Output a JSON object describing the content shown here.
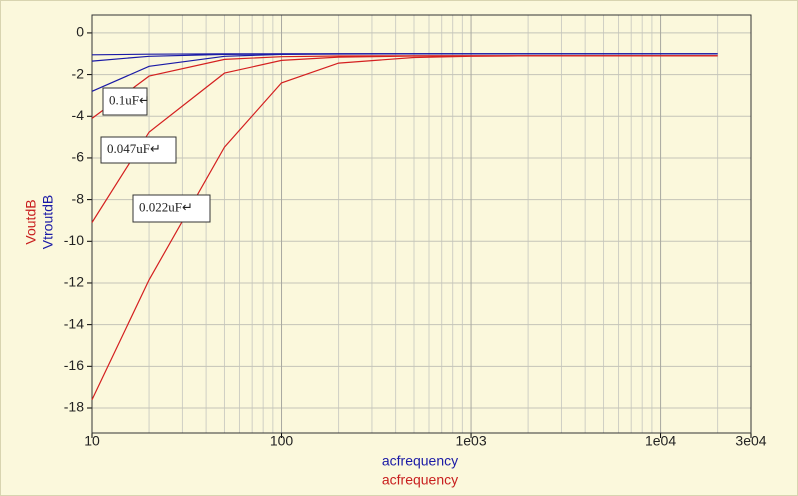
{
  "chart_data": {
    "type": "line",
    "log_x": true,
    "grid": true,
    "minor_grid": true,
    "x_labels": [
      {
        "text": "acfrequency",
        "color": "#1a1aa6"
      },
      {
        "text": "acfrequency",
        "color": "#c81e1e"
      }
    ],
    "y_labels": [
      {
        "text": "VoutdB",
        "color": "#c81e1e"
      },
      {
        "text": "VtroutdB",
        "color": "#1a1aa6"
      }
    ],
    "x": [
      10,
      20,
      50,
      100,
      200,
      500,
      1000,
      2000,
      5000,
      10000,
      20000
    ],
    "series": [
      {
        "color": "#d42020",
        "values": [
          -4.1,
          -2.07,
          -1.27,
          -1.14,
          -1.11,
          -1.1,
          -1.1,
          -1.1,
          -1.1,
          -1.1,
          -1.1
        ]
      },
      {
        "color": "#d42020",
        "values": [
          -9.1,
          -4.76,
          -1.93,
          -1.32,
          -1.16,
          -1.11,
          -1.1,
          -1.1,
          -1.1,
          -1.1,
          -1.1
        ]
      },
      {
        "color": "#d42020",
        "values": [
          -17.6,
          -11.85,
          -5.48,
          -2.4,
          -1.45,
          -1.18,
          -1.12,
          -1.1,
          -1.1,
          -1.1,
          -1.1
        ]
      },
      {
        "color": "#1a1aa6",
        "values": [
          -1.05,
          -1.02,
          -1.0,
          -1.0,
          -1.0,
          -1.0,
          -1.0,
          -1.0,
          -1.0,
          -1.0,
          -1.0
        ]
      },
      {
        "color": "#1a1aa6",
        "values": [
          -1.35,
          -1.12,
          -1.03,
          -1.01,
          -1.0,
          -1.0,
          -1.0,
          -1.0,
          -1.0,
          -1.0,
          -1.0
        ]
      },
      {
        "color": "#1a1aa6",
        "values": [
          -2.8,
          -1.6,
          -1.12,
          -1.03,
          -1.01,
          -1.0,
          -1.0,
          -1.0,
          -1.0,
          -1.0,
          -1.0
        ]
      }
    ],
    "annotations": [
      "0.1uF↵",
      "0.047uF↵",
      "0.022uF↵"
    ],
    "xlim": [
      10,
      30000
    ],
    "xticks": [
      10,
      100,
      {
        "value": 1000,
        "label": "1e03"
      },
      {
        "value": 10000,
        "label": "1e04"
      },
      {
        "value": 30000,
        "label": "3e04"
      }
    ],
    "ylim": [
      -19.2,
      0.86
    ],
    "yticks": [
      0,
      -2,
      -4,
      -6,
      -8,
      -10,
      -12,
      -14,
      -16,
      -18
    ]
  }
}
